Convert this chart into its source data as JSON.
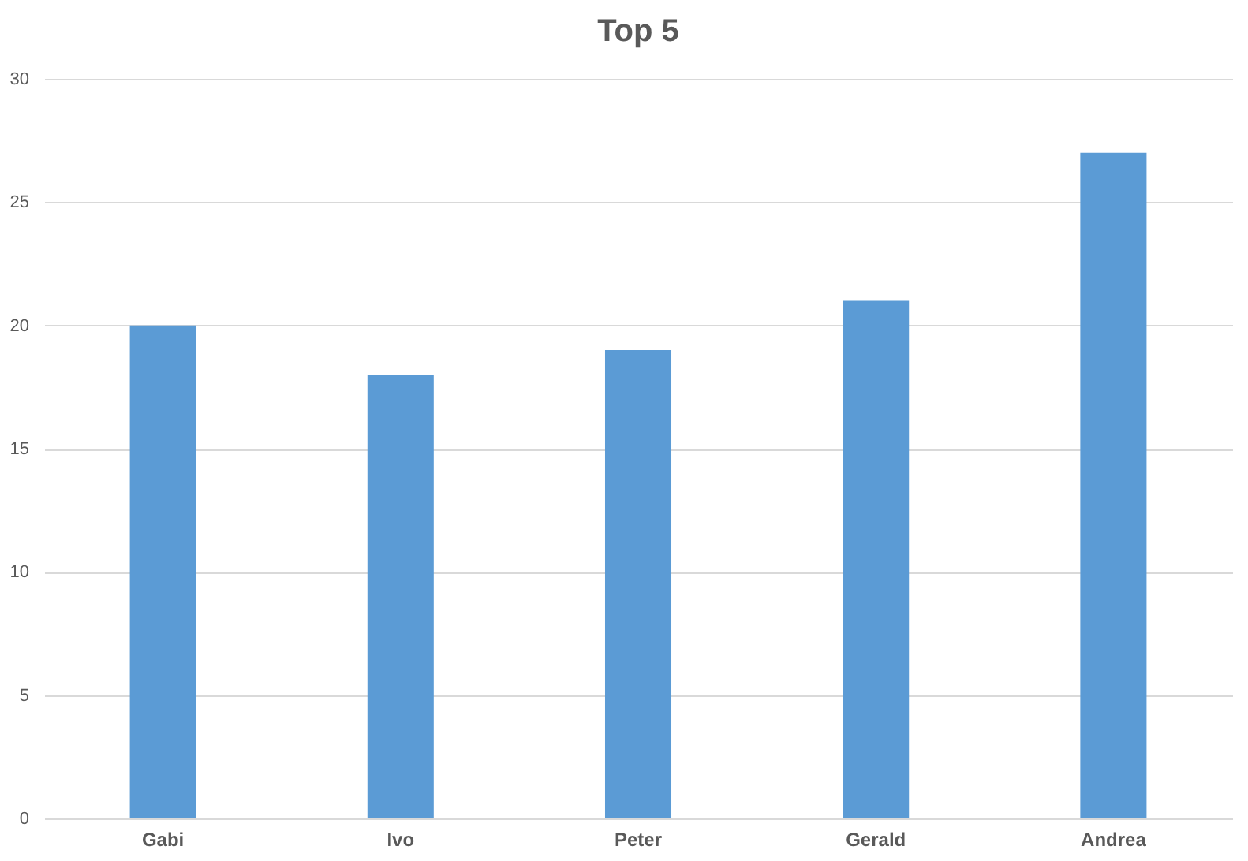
{
  "chart_data": {
    "type": "bar",
    "title": "Top 5",
    "categories": [
      "Gabi",
      "Ivo",
      "Peter",
      "Gerald",
      "Andrea"
    ],
    "values": [
      20,
      18,
      19,
      21,
      27
    ],
    "color": "#5b9bd5",
    "ylim": [
      0,
      30
    ],
    "yticks": [
      0,
      5,
      10,
      15,
      20,
      25,
      30
    ],
    "grid": "y"
  }
}
